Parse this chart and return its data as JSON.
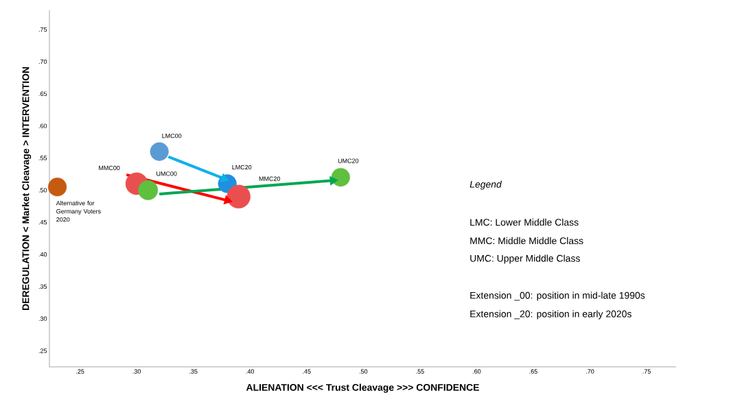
{
  "chart_data": {
    "type": "bubble",
    "xlabel": "ALIENATION <<< Trust Cleavage >>> CONFIDENCE",
    "ylabel": "DEREGULATION < Market Cleavage > INTERVENTION",
    "xlim": [
      0.223,
      0.776
    ],
    "ylim": [
      0.225,
      0.78
    ],
    "xticks": [
      {
        "value": 0.25,
        "label": ".25"
      },
      {
        "value": 0.3,
        "label": ".30"
      },
      {
        "value": 0.35,
        "label": ".35"
      },
      {
        "value": 0.4,
        "label": ".40"
      },
      {
        "value": 0.45,
        "label": ".45"
      },
      {
        "value": 0.5,
        "label": ".50"
      },
      {
        "value": 0.55,
        "label": ".55"
      },
      {
        "value": 0.6,
        "label": ".60"
      },
      {
        "value": 0.65,
        "label": ".65"
      },
      {
        "value": 0.7,
        "label": ".70"
      },
      {
        "value": 0.75,
        "label": ".75"
      }
    ],
    "yticks": [
      {
        "value": 0.25,
        "label": ".25"
      },
      {
        "value": 0.3,
        "label": ".30"
      },
      {
        "value": 0.35,
        "label": ".35"
      },
      {
        "value": 0.4,
        "label": ".40"
      },
      {
        "value": 0.45,
        "label": ".45"
      },
      {
        "value": 0.5,
        "label": ".50"
      },
      {
        "value": 0.55,
        "label": ".55"
      },
      {
        "value": 0.6,
        "label": ".60"
      },
      {
        "value": 0.65,
        "label": ".65"
      },
      {
        "value": 0.7,
        "label": ".70"
      },
      {
        "value": 0.75,
        "label": ".75"
      }
    ],
    "series": [
      {
        "name": "Alternative for Germany Voters 2020",
        "color": "#c55a11",
        "x": [
          0.23
        ],
        "values": [
          0.505
        ],
        "sizes": [
          0.62
        ]
      },
      {
        "name": "LMC00",
        "color": "#5b9bd5",
        "x": [
          0.32
        ],
        "values": [
          0.56
        ],
        "sizes": [
          0.62
        ]
      },
      {
        "name": "MMC00",
        "color": "#ea4f4f",
        "x": [
          0.3
        ],
        "values": [
          0.51
        ],
        "sizes": [
          0.9
        ]
      },
      {
        "name": "UMC00",
        "color": "#5fbf3f",
        "x": [
          0.31
        ],
        "values": [
          0.5
        ],
        "sizes": [
          0.71
        ]
      },
      {
        "name": "LMC20",
        "color": "#1f8fe0",
        "x": [
          0.38
        ],
        "values": [
          0.51
        ],
        "sizes": [
          0.62
        ]
      },
      {
        "name": "MMC20",
        "color": "#ea4f4f",
        "x": [
          0.39
        ],
        "values": [
          0.49
        ],
        "sizes": [
          1
        ]
      },
      {
        "name": "UMC20",
        "color": "#5fbf3f",
        "x": [
          0.48
        ],
        "values": [
          0.52
        ],
        "sizes": [
          0.62
        ]
      },
      {
        "type": "line",
        "color": "#10b0ea",
        "x": [
          0.328,
          0.377
        ],
        "values": [
          0.552,
          0.518
        ]
      },
      {
        "type": "line",
        "color": "#ff0000",
        "x": [
          0.291,
          0.38
        ],
        "values": [
          0.524,
          0.484
        ]
      },
      {
        "type": "line",
        "color": "#00a651",
        "x": [
          0.32,
          0.473
        ],
        "values": [
          0.494,
          0.515
        ]
      }
    ],
    "annotations": [
      "Legend",
      "LMC: Lower Middle Class",
      "MMC: Middle Middle Class",
      "UMC: Upper Middle Class",
      "Extension _00: position in mid-late 1990s",
      "Extension _20: position in early 2020s"
    ],
    "grid": false
  }
}
